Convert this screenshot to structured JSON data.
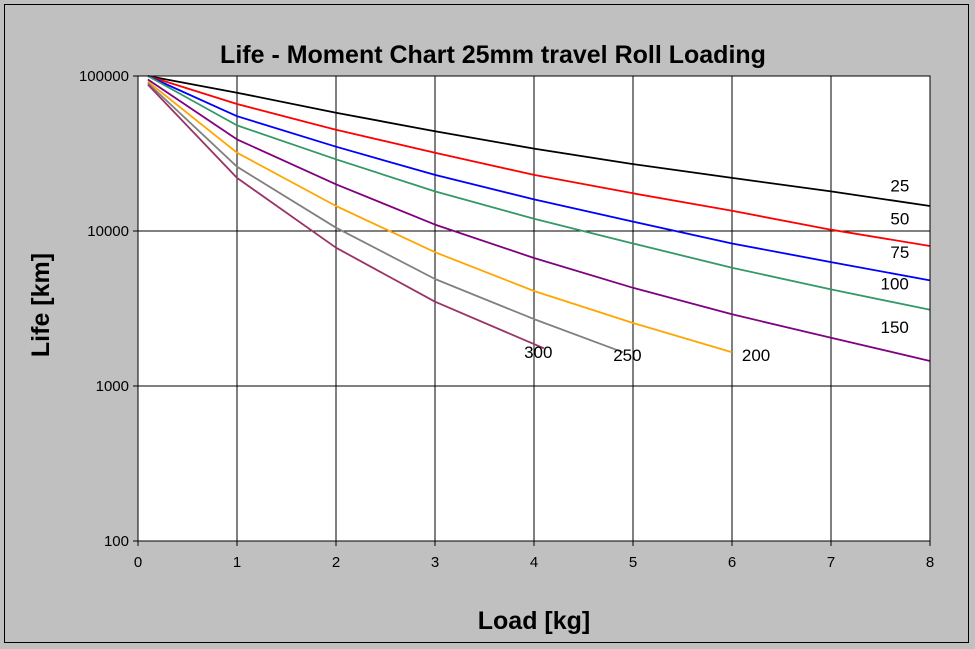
{
  "chart_data": {
    "type": "line",
    "title": "Life - Moment Chart 25mm travel Roll Loading",
    "xlabel": "Load [kg]",
    "ylabel": "Life [km]",
    "x_scale": "linear",
    "y_scale": "log",
    "xlim": [
      0,
      8
    ],
    "ylim": [
      100,
      100000
    ],
    "x_ticks": [
      "0",
      "1",
      "2",
      "3",
      "4",
      "5",
      "6",
      "7",
      "8"
    ],
    "y_ticks": [
      "100",
      "1000",
      "10000",
      "100000"
    ],
    "grid": true,
    "plot_background": "#ffffff",
    "legend": "none (series labelled inline)",
    "series": [
      {
        "name": "25",
        "color": "#000000",
        "points": [
          [
            0.1,
            100000
          ],
          [
            1,
            78000
          ],
          [
            2,
            58000
          ],
          [
            3,
            44000
          ],
          [
            4,
            34000
          ],
          [
            5,
            27000
          ],
          [
            6,
            22000
          ],
          [
            7,
            18000
          ],
          [
            8,
            14500
          ]
        ]
      },
      {
        "name": "50",
        "color": "#ff0000",
        "points": [
          [
            0.1,
            100000
          ],
          [
            1,
            66000
          ],
          [
            2,
            45000
          ],
          [
            3,
            32000
          ],
          [
            4,
            23000
          ],
          [
            5,
            17500
          ],
          [
            6,
            13500
          ],
          [
            7,
            10200
          ],
          [
            8,
            8000
          ]
        ]
      },
      {
        "name": "75",
        "color": "#0000ff",
        "points": [
          [
            0.1,
            100000
          ],
          [
            1,
            55000
          ],
          [
            2,
            35000
          ],
          [
            3,
            23000
          ],
          [
            4,
            16000
          ],
          [
            5,
            11500
          ],
          [
            6,
            8300
          ],
          [
            7,
            6300
          ],
          [
            8,
            4800
          ]
        ]
      },
      {
        "name": "100",
        "color": "#339966",
        "points": [
          [
            0.1,
            100000
          ],
          [
            1,
            48000
          ],
          [
            2,
            29000
          ],
          [
            3,
            18000
          ],
          [
            4,
            12000
          ],
          [
            5,
            8300
          ],
          [
            6,
            5800
          ],
          [
            7,
            4200
          ],
          [
            8,
            3100
          ]
        ]
      },
      {
        "name": "150",
        "color": "#800080",
        "points": [
          [
            0.1,
            95000
          ],
          [
            1,
            39000
          ],
          [
            2,
            20000
          ],
          [
            3,
            11000
          ],
          [
            4,
            6700
          ],
          [
            5,
            4300
          ],
          [
            6,
            2900
          ],
          [
            7,
            2050
          ],
          [
            8,
            1450
          ]
        ]
      },
      {
        "name": "200",
        "color": "#ffa500",
        "points": [
          [
            0.1,
            92000
          ],
          [
            1,
            32000
          ],
          [
            2,
            14500
          ],
          [
            3,
            7300
          ],
          [
            4,
            4100
          ],
          [
            5,
            2550
          ],
          [
            6,
            1650
          ]
        ]
      },
      {
        "name": "250",
        "color": "#808080",
        "points": [
          [
            0.1,
            90000
          ],
          [
            1,
            26000
          ],
          [
            2,
            10500
          ],
          [
            3,
            4900
          ],
          [
            4,
            2700
          ],
          [
            4.9,
            1650
          ]
        ]
      },
      {
        "name": "300",
        "color": "#993366",
        "points": [
          [
            0.1,
            88000
          ],
          [
            1,
            22000
          ],
          [
            2,
            7800
          ],
          [
            3,
            3500
          ],
          [
            4.1,
            1750
          ]
        ]
      }
    ],
    "series_labels": [
      {
        "text": "25",
        "at": [
          7.6,
          18000
        ]
      },
      {
        "text": "50",
        "at": [
          7.6,
          11000
        ]
      },
      {
        "text": "75",
        "at": [
          7.6,
          6700
        ]
      },
      {
        "text": "100",
        "at": [
          7.5,
          4200
        ]
      },
      {
        "text": "150",
        "at": [
          7.5,
          2200
        ]
      },
      {
        "text": "200",
        "at": [
          6.1,
          1450
        ]
      },
      {
        "text": "250",
        "at": [
          4.8,
          1450
        ]
      },
      {
        "text": "300",
        "at": [
          3.9,
          1520
        ]
      }
    ]
  }
}
